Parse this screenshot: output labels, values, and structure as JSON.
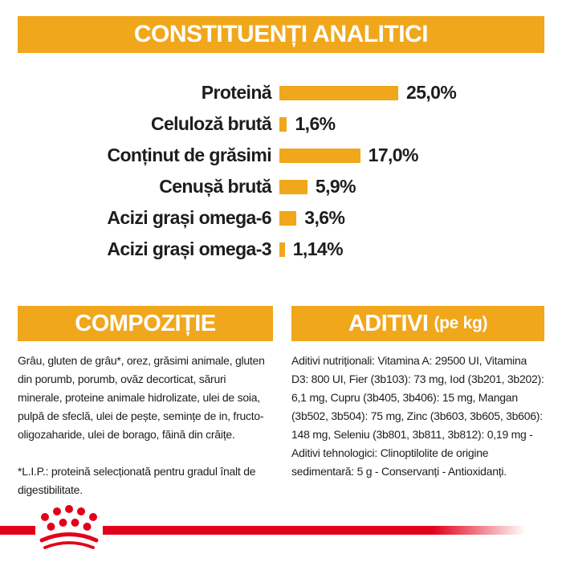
{
  "colors": {
    "accent_orange": "#F0A71C",
    "brand_red": "#E2001A",
    "text": "#1d1d1b",
    "header_text": "#ffffff"
  },
  "header": {
    "title": "CONSTITUENȚI ANALITICI"
  },
  "chart_data": {
    "type": "bar",
    "orientation": "horizontal",
    "title": "CONSTITUENȚI ANALITICI",
    "categories": [
      "Proteină",
      "Celuloză brută",
      "Conținut de grăsimi",
      "Cenușă brută",
      "Acizi grași omega-6",
      "Acizi grași omega-3"
    ],
    "values": [
      25.0,
      1.6,
      17.0,
      5.9,
      3.6,
      1.14
    ],
    "value_labels": [
      "25,0%",
      "1,6%",
      "17,0%",
      "5,9%",
      "3,6%",
      "1,14%"
    ],
    "unit": "%",
    "xlim": [
      0,
      25
    ],
    "bar_color": "#F0A71C",
    "grid": false,
    "legend": false
  },
  "composition": {
    "heading": "COMPOZIȚIE",
    "body": "Grâu, gluten de grâu*, orez, grăsimi animale, gluten din porumb, porumb, ovăz decorticat, săruri minerale, proteine animale hidrolizate, ulei de soia, pulpă de sfeclă, ulei de pește, semințe de in, fructo-oligozaharide, ulei de borago, făină din crăițe.",
    "footnote": "*L.I.P.: proteină selecționată pentru gradul înalt de digestibilitate."
  },
  "additives": {
    "heading": "ADITIVI",
    "heading_suffix": "(pe kg)",
    "body": "Aditivi nutriționali: Vitamina A: 29500 UI, Vitamina D3: 800 UI, Fier (3b103): 73 mg, Iod (3b201, 3b202): 6,1 mg, Cupru (3b405, 3b406): 15 mg, Mangan (3b502, 3b504): 75 mg, Zinc (3b603, 3b605, 3b606): 148 mg, Seleniu (3b801, 3b811, 3b812): 0,19 mg - Aditivi tehnologici: Clinoptilolite de origine sedimentară: 5 g - Conservanți - Antioxidanți."
  },
  "footer": {
    "logo": "royal-canin-crown"
  }
}
